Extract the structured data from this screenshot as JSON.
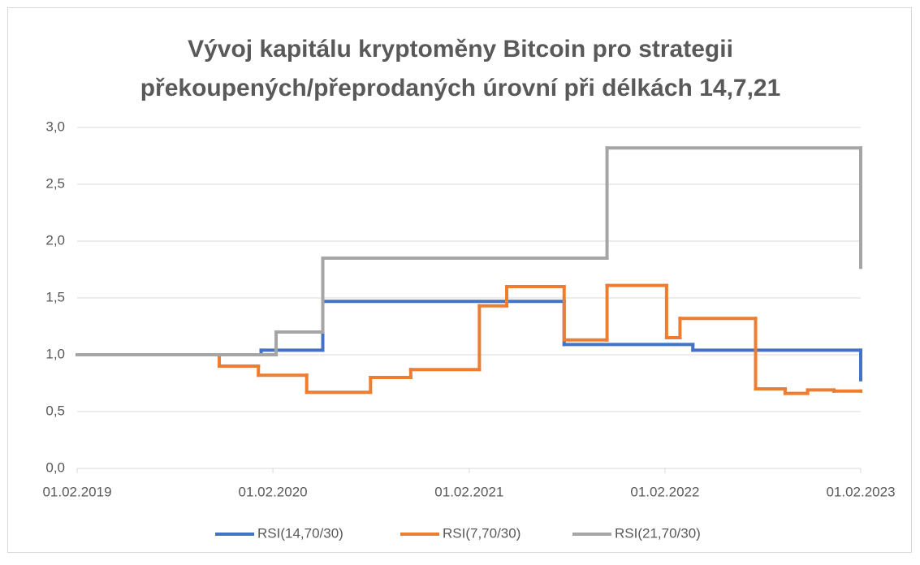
{
  "chart_data": {
    "type": "line",
    "step": true,
    "title": [
      "Vývoj kapitálu kryptoměny Bitcoin pro strategii",
      "překoupených/přeprodaných úrovní při délkách 14,7,21"
    ],
    "ylim": [
      0,
      3
    ],
    "yticks": [
      {
        "value": 0,
        "label": "0,0"
      },
      {
        "value": 0.5,
        "label": "0,5"
      },
      {
        "value": 1,
        "label": "1,0"
      },
      {
        "value": 1.5,
        "label": "1,5"
      },
      {
        "value": 2,
        "label": "2,0"
      },
      {
        "value": 2.5,
        "label": "2,5"
      },
      {
        "value": 3,
        "label": "3,0"
      }
    ],
    "xlim": [
      "01.02.2019",
      "01.02.2023"
    ],
    "xticks": [
      "01.02.2019",
      "01.02.2020",
      "01.02.2021",
      "01.02.2022",
      "01.02.2023"
    ],
    "grid": true,
    "legend": "bottom",
    "series": [
      {
        "name": "RSI(14,70/30)",
        "color": "#4472c4",
        "x": [
          "01.02.2019",
          "10.01.2020",
          "04.05.2020",
          "28.07.2021",
          "25.03.2022",
          "01.02.2023"
        ],
        "values": [
          1.0,
          1.04,
          1.47,
          1.09,
          1.04,
          0.78
        ]
      },
      {
        "name": "RSI(7,70/30)",
        "color": "#ed7d31",
        "x": [
          "01.02.2019",
          "24.10.2019",
          "05.01.2020",
          "04.04.2020",
          "01.08.2020",
          "15.10.2020",
          "20.02.2021",
          "12.04.2021",
          "28.07.2021",
          "16.10.2021",
          "04.02.2022",
          "01.03.2022",
          "20.07.2022",
          "13.09.2022",
          "25.10.2022",
          "13.12.2022",
          "01.02.2023"
        ],
        "values": [
          1.0,
          0.9,
          0.82,
          0.67,
          0.8,
          0.87,
          1.43,
          1.6,
          1.13,
          1.61,
          1.15,
          1.32,
          0.7,
          0.66,
          0.69,
          0.68,
          0.68
        ]
      },
      {
        "name": "RSI(21,70/30)",
        "color": "#a5a5a5",
        "x": [
          "01.02.2019",
          "07.02.2020",
          "04.05.2020",
          "16.10.2021",
          "01.02.2023"
        ],
        "values": [
          1.0,
          1.2,
          1.85,
          2.82,
          1.77
        ]
      }
    ]
  }
}
